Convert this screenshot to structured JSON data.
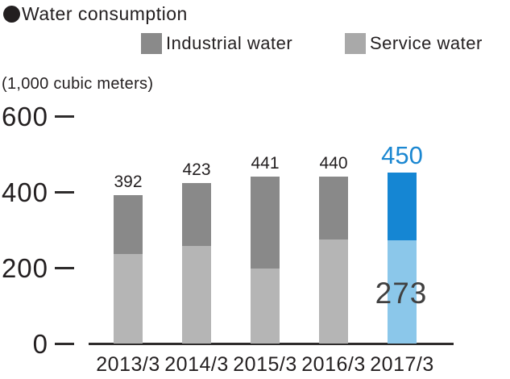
{
  "title": {
    "bullet": "●",
    "text": "Water consumption"
  },
  "unit_label": "(1,000 cubic meters)",
  "legend": {
    "items": [
      {
        "label": "Industrial water",
        "color": "#8a8a8a"
      },
      {
        "label": "Service water",
        "color": "#a9a9a9"
      }
    ]
  },
  "colors": {
    "text": "#231f20",
    "axis": "#2e2c2c",
    "industrial_gray": "#898989",
    "service_gray": "#b5b5b5",
    "industrial_blue": "#1586d3",
    "service_blue": "#8bc7ea",
    "highlight_total": "#1b87d1",
    "service_big_label": "#404040"
  },
  "chart_data": {
    "type": "bar",
    "stacked": true,
    "title": "Water consumption",
    "unit": "1,000 cubic meters",
    "categories": [
      "2013/3",
      "2014/3",
      "2015/3",
      "2016/3",
      "2017/3"
    ],
    "series": [
      {
        "name": "Service water",
        "values": [
          237,
          258,
          197,
          274,
          273
        ],
        "colors": [
          "#b5b5b5",
          "#b5b5b5",
          "#b5b5b5",
          "#b5b5b5",
          "#8bc7ea"
        ]
      },
      {
        "name": "Industrial water",
        "values": [
          155,
          165,
          244,
          166,
          177
        ],
        "colors": [
          "#898989",
          "#898989",
          "#898989",
          "#898989",
          "#1586d3"
        ]
      }
    ],
    "totals": [
      392,
      423,
      441,
      440,
      450
    ],
    "total_label_colors": [
      "#231f20",
      "#231f20",
      "#231f20",
      "#231f20",
      "#1b87d1"
    ],
    "service_value_label": {
      "category": "2017/3",
      "value": "273",
      "color": "#404040"
    },
    "yticks": [
      0,
      200,
      400,
      600
    ],
    "ylim": [
      0,
      600
    ],
    "grid": false,
    "legend_position": "top",
    "highlight_category": "2017/3"
  }
}
